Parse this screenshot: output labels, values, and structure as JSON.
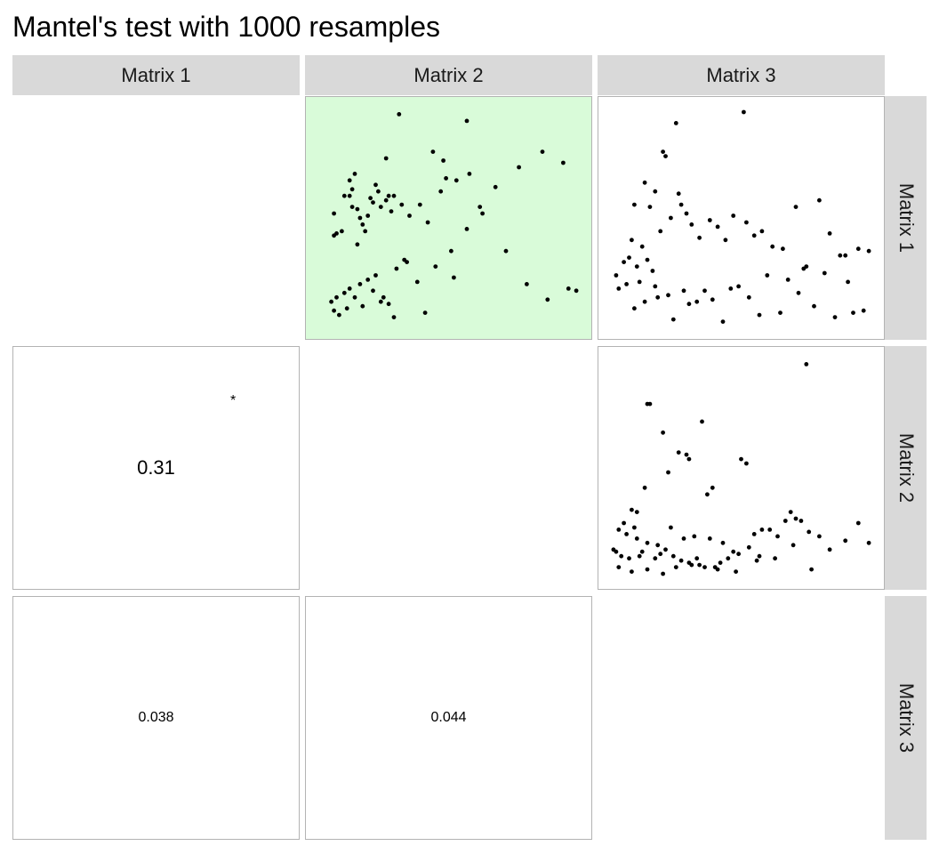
{
  "title": "Mantel's test with 1000 resamples",
  "colors": {
    "highlight_fill": "#d9fbd9",
    "strip_fill": "#d9d9d9",
    "panel_border": "#b3b3b3",
    "point": "#000000"
  },
  "chart_data": {
    "type": "scatter",
    "title": "Mantel's test with 1000 resamples",
    "columns": [
      "Matrix 1",
      "Matrix 2",
      "Matrix 3"
    ],
    "rows": [
      "Matrix 1",
      "Matrix 2",
      "Matrix 3"
    ],
    "correlations": [
      {
        "row": "Matrix 2",
        "col": "Matrix 1",
        "value": "0.31",
        "significance": "*"
      },
      {
        "row": "Matrix 3",
        "col": "Matrix 1",
        "value": "0.038",
        "significance": ""
      },
      {
        "row": "Matrix 3",
        "col": "Matrix 2",
        "value": "0.044",
        "significance": ""
      }
    ],
    "scatters": [
      {
        "row": "Matrix 1",
        "col": "Matrix 2",
        "highlight": true,
        "x": [
          0.31,
          0.57,
          0.26,
          0.44,
          0.48,
          0.06,
          0.09,
          0.15,
          0.07,
          0.06,
          0.13,
          0.17,
          0.19,
          0.12,
          0.21,
          0.23,
          0.27,
          0.24,
          0.26,
          0.29,
          0.12,
          0.13,
          0.16,
          0.18,
          0.15,
          0.1,
          0.14,
          0.2,
          0.22,
          0.28,
          0.32,
          0.35,
          0.39,
          0.42,
          0.47,
          0.49,
          0.53,
          0.58,
          0.62,
          0.68,
          0.77,
          0.86,
          0.94,
          0.05,
          0.07,
          0.1,
          0.12,
          0.16,
          0.19,
          0.22,
          0.25,
          0.27,
          0.3,
          0.33,
          0.38,
          0.45,
          0.51,
          0.57,
          0.63,
          0.72,
          0.8,
          0.88,
          0.96,
          0.99,
          0.06,
          0.08,
          0.11,
          0.14,
          0.17,
          0.21,
          0.24,
          0.29,
          0.34,
          0.41,
          0.52
        ],
        "y": [
          0.97,
          0.94,
          0.77,
          0.8,
          0.76,
          0.42,
          0.44,
          0.38,
          0.43,
          0.52,
          0.55,
          0.47,
          0.51,
          0.6,
          0.57,
          0.62,
          0.6,
          0.55,
          0.58,
          0.6,
          0.67,
          0.63,
          0.5,
          0.44,
          0.54,
          0.6,
          0.7,
          0.59,
          0.65,
          0.53,
          0.56,
          0.51,
          0.56,
          0.48,
          0.62,
          0.68,
          0.67,
          0.7,
          0.55,
          0.64,
          0.73,
          0.8,
          0.75,
          0.12,
          0.14,
          0.16,
          0.18,
          0.2,
          0.22,
          0.24,
          0.14,
          0.11,
          0.27,
          0.31,
          0.21,
          0.28,
          0.35,
          0.45,
          0.52,
          0.35,
          0.2,
          0.13,
          0.18,
          0.17,
          0.08,
          0.06,
          0.09,
          0.14,
          0.1,
          0.17,
          0.12,
          0.05,
          0.3,
          0.07,
          0.23
        ]
      },
      {
        "row": "Matrix 1",
        "col": "Matrix 3",
        "highlight": false,
        "x": [
          0.25,
          0.51,
          0.2,
          0.21,
          0.13,
          0.17,
          0.26,
          0.09,
          0.15,
          0.05,
          0.02,
          0.07,
          0.14,
          0.1,
          0.16,
          0.12,
          0.08,
          0.19,
          0.23,
          0.27,
          0.29,
          0.31,
          0.34,
          0.38,
          0.41,
          0.44,
          0.47,
          0.52,
          0.55,
          0.58,
          0.62,
          0.66,
          0.71,
          0.75,
          0.8,
          0.84,
          0.88,
          0.9,
          0.95,
          0.99,
          0.06,
          0.11,
          0.17,
          0.22,
          0.28,
          0.33,
          0.39,
          0.46,
          0.53,
          0.6,
          0.68,
          0.74,
          0.82,
          0.91,
          0.97,
          0.03,
          0.09,
          0.13,
          0.18,
          0.24,
          0.3,
          0.36,
          0.43,
          0.49,
          0.57,
          0.65,
          0.72,
          0.78,
          0.86,
          0.93
        ],
        "y": [
          0.93,
          0.98,
          0.8,
          0.78,
          0.66,
          0.62,
          0.61,
          0.56,
          0.55,
          0.3,
          0.24,
          0.32,
          0.31,
          0.28,
          0.26,
          0.37,
          0.4,
          0.44,
          0.5,
          0.56,
          0.52,
          0.47,
          0.41,
          0.49,
          0.46,
          0.4,
          0.51,
          0.48,
          0.42,
          0.44,
          0.37,
          0.36,
          0.55,
          0.28,
          0.58,
          0.43,
          0.33,
          0.33,
          0.36,
          0.35,
          0.2,
          0.21,
          0.19,
          0.15,
          0.17,
          0.12,
          0.13,
          0.18,
          0.14,
          0.24,
          0.22,
          0.27,
          0.25,
          0.21,
          0.08,
          0.18,
          0.09,
          0.12,
          0.14,
          0.04,
          0.11,
          0.17,
          0.03,
          0.19,
          0.06,
          0.07,
          0.16,
          0.1,
          0.05,
          0.07
        ]
      },
      {
        "row": "Matrix 2",
        "col": "Matrix 3",
        "highlight": false,
        "x": [
          0.75,
          0.15,
          0.14,
          0.2,
          0.35,
          0.26,
          0.29,
          0.3,
          0.5,
          0.52,
          0.22,
          0.13,
          0.37,
          0.39,
          0.08,
          0.1,
          0.05,
          0.09,
          0.01,
          0.02,
          0.04,
          0.07,
          0.12,
          0.11,
          0.17,
          0.19,
          0.21,
          0.24,
          0.27,
          0.31,
          0.33,
          0.36,
          0.4,
          0.42,
          0.45,
          0.47,
          0.53,
          0.55,
          0.58,
          0.61,
          0.64,
          0.67,
          0.69,
          0.71,
          0.73,
          0.76,
          0.8,
          0.84,
          0.9,
          0.95,
          0.99,
          0.03,
          0.06,
          0.1,
          0.14,
          0.18,
          0.23,
          0.28,
          0.32,
          0.38,
          0.43,
          0.49,
          0.56,
          0.63,
          0.7,
          0.77,
          0.03,
          0.08,
          0.14,
          0.2,
          0.25,
          0.3,
          0.34,
          0.41,
          0.48,
          0.57
        ],
        "y": [
          0.97,
          0.79,
          0.79,
          0.66,
          0.71,
          0.57,
          0.56,
          0.54,
          0.54,
          0.52,
          0.48,
          0.41,
          0.38,
          0.41,
          0.31,
          0.3,
          0.25,
          0.23,
          0.13,
          0.12,
          0.1,
          0.09,
          0.12,
          0.1,
          0.09,
          0.11,
          0.13,
          0.1,
          0.08,
          0.06,
          0.09,
          0.05,
          0.05,
          0.07,
          0.09,
          0.12,
          0.14,
          0.2,
          0.22,
          0.22,
          0.19,
          0.26,
          0.3,
          0.27,
          0.26,
          0.21,
          0.19,
          0.13,
          0.17,
          0.25,
          0.16,
          0.22,
          0.2,
          0.18,
          0.16,
          0.15,
          0.23,
          0.18,
          0.19,
          0.18,
          0.16,
          0.11,
          0.08,
          0.09,
          0.15,
          0.04,
          0.05,
          0.03,
          0.04,
          0.02,
          0.05,
          0.07,
          0.06,
          0.04,
          0.03,
          0.1
        ]
      }
    ]
  }
}
